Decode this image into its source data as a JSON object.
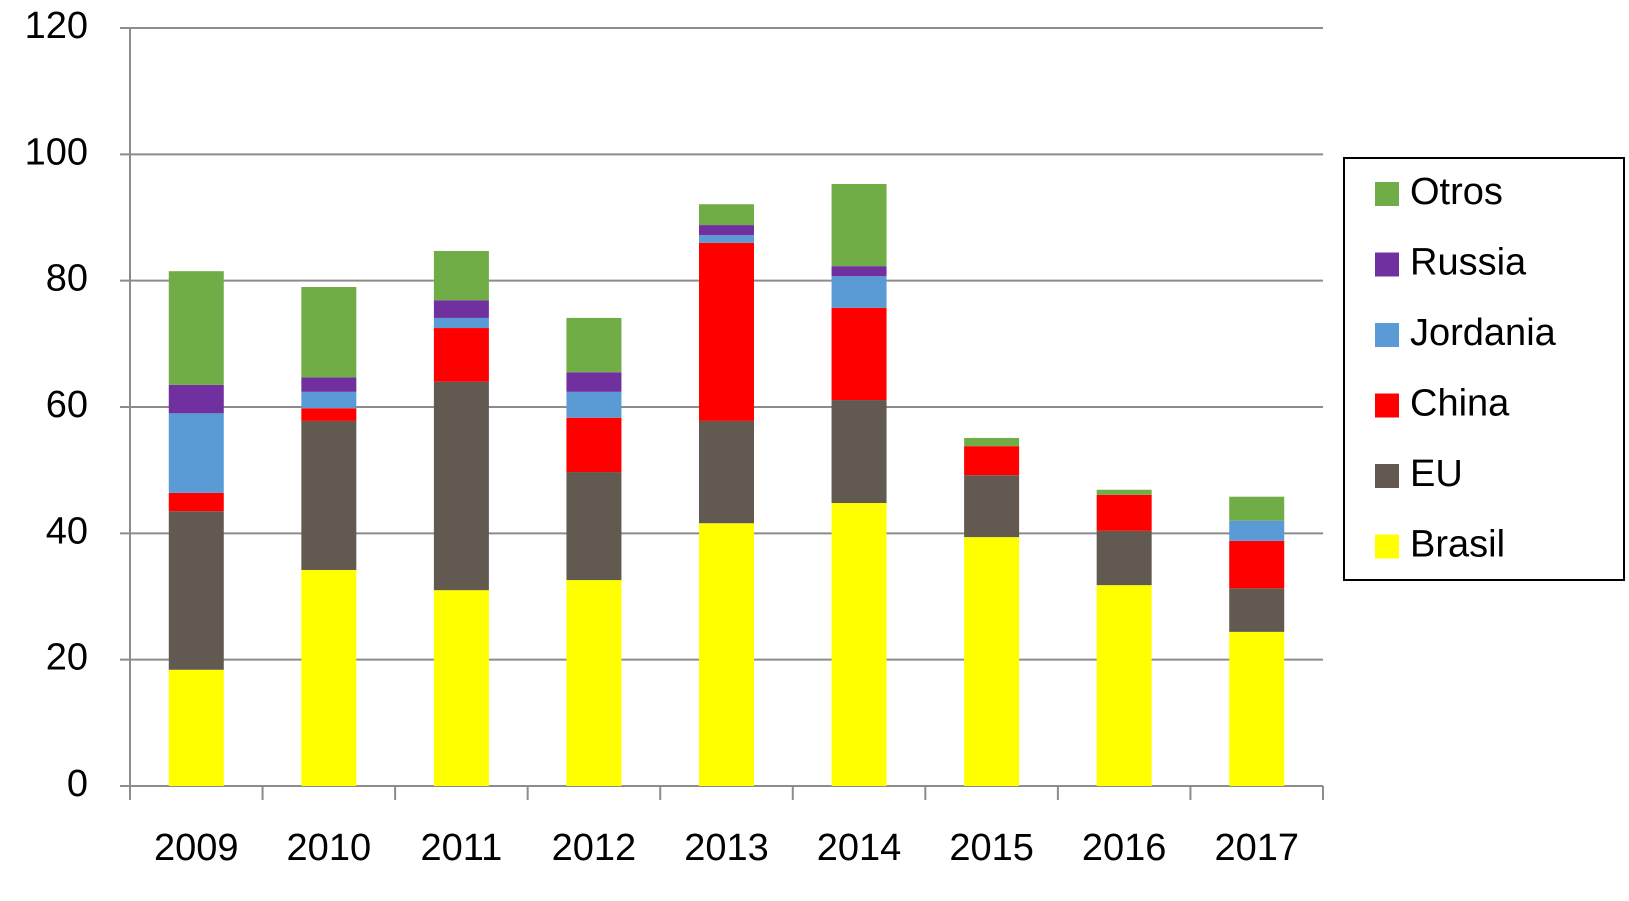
{
  "chart_data": {
    "type": "stacked-bar",
    "categories": [
      "2009",
      "2010",
      "2011",
      "2012",
      "2013",
      "2014",
      "2015",
      "2016",
      "2017"
    ],
    "series": [
      {
        "name": "Brasil",
        "color": "#ffff00",
        "values": [
          18.4,
          34.2,
          31.0,
          32.6,
          41.6,
          44.8,
          39.4,
          31.8,
          24.4
        ]
      },
      {
        "name": "EU",
        "color": "#625a50",
        "values": [
          25.1,
          23.6,
          33.0,
          17.1,
          16.2,
          16.3,
          9.8,
          8.6,
          6.9
        ]
      },
      {
        "name": "China",
        "color": "#ff0000",
        "values": [
          2.9,
          2.0,
          8.5,
          8.6,
          28.2,
          14.6,
          4.6,
          5.7,
          7.5
        ]
      },
      {
        "name": "Jordania",
        "color": "#5b9bd5",
        "values": [
          12.6,
          2.6,
          1.6,
          4.1,
          1.2,
          5.0,
          0,
          0,
          3.2
        ]
      },
      {
        "name": "Russia",
        "color": "#7030a0",
        "values": [
          4.5,
          2.3,
          2.8,
          3.1,
          1.6,
          1.6,
          0,
          0,
          0
        ]
      },
      {
        "name": "Otros",
        "color": "#70ad47",
        "values": [
          18.0,
          14.3,
          7.8,
          8.6,
          3.3,
          13.0,
          1.3,
          0.8,
          3.8
        ]
      }
    ],
    "ylim": [
      0,
      120
    ],
    "yticks": [
      0,
      20,
      40,
      60,
      80,
      100,
      120
    ],
    "grid": true,
    "legend": "right"
  }
}
